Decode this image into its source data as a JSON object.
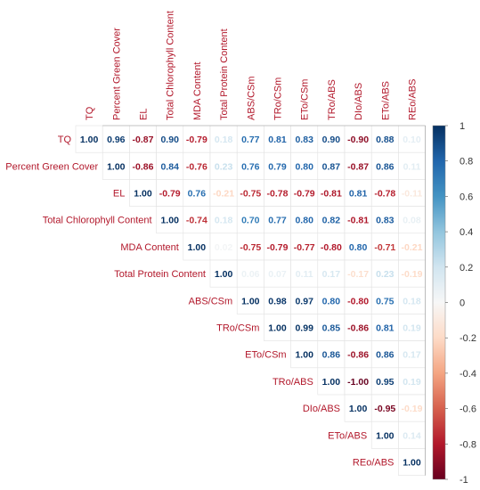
{
  "chart_data": {
    "type": "heatmap",
    "variables": [
      "TQ",
      "Percent Green Cover",
      "EL",
      "Total Chlorophyll Content",
      "MDA Content",
      "Total Protein Content",
      "ABS/CSm",
      "TRo/CSm",
      "ETo/CSm",
      "TRo/ABS",
      "DIo/ABS",
      "ETo/ABS",
      "REo/ABS"
    ],
    "matrix": [
      [
        1.0,
        0.96,
        -0.87,
        0.9,
        -0.79,
        0.18,
        0.77,
        0.81,
        0.83,
        0.9,
        -0.9,
        0.88,
        0.1
      ],
      [
        null,
        1.0,
        -0.86,
        0.84,
        -0.76,
        0.23,
        0.76,
        0.79,
        0.8,
        0.87,
        -0.87,
        0.86,
        0.11
      ],
      [
        null,
        null,
        1.0,
        -0.79,
        0.76,
        -0.21,
        -0.75,
        -0.78,
        -0.79,
        -0.81,
        0.81,
        -0.78,
        -0.11
      ],
      [
        null,
        null,
        null,
        1.0,
        -0.74,
        0.18,
        0.7,
        0.77,
        0.8,
        0.82,
        -0.81,
        0.83,
        0.08
      ],
      [
        null,
        null,
        null,
        null,
        1.0,
        0.02,
        -0.75,
        -0.79,
        -0.77,
        -0.8,
        0.8,
        -0.71,
        -0.21
      ],
      [
        null,
        null,
        null,
        null,
        null,
        1.0,
        0.06,
        0.07,
        0.11,
        0.17,
        -0.17,
        0.23,
        -0.19
      ],
      [
        null,
        null,
        null,
        null,
        null,
        null,
        1.0,
        0.98,
        0.97,
        0.8,
        -0.8,
        0.75,
        0.18
      ],
      [
        null,
        null,
        null,
        null,
        null,
        null,
        null,
        1.0,
        0.99,
        0.85,
        -0.86,
        0.81,
        0.19
      ],
      [
        null,
        null,
        null,
        null,
        null,
        null,
        null,
        null,
        1.0,
        0.86,
        -0.86,
        0.86,
        0.17
      ],
      [
        null,
        null,
        null,
        null,
        null,
        null,
        null,
        null,
        null,
        1.0,
        -1.0,
        0.95,
        0.19
      ],
      [
        null,
        null,
        null,
        null,
        null,
        null,
        null,
        null,
        null,
        null,
        1.0,
        -0.95,
        -0.19
      ],
      [
        null,
        null,
        null,
        null,
        null,
        null,
        null,
        null,
        null,
        null,
        null,
        1.0,
        0.14
      ],
      [
        null,
        null,
        null,
        null,
        null,
        null,
        null,
        null,
        null,
        null,
        null,
        null,
        1.0
      ]
    ],
    "colorbar": {
      "range": [
        -1,
        1
      ],
      "ticks": [
        "1",
        "0.8",
        "0.6",
        "0.4",
        "0.2",
        "0",
        "-0.2",
        "-0.4",
        "-0.6",
        "-0.8",
        "-1"
      ],
      "low_color": "#67001f",
      "mid_color": "#f7f7f7",
      "high_color": "#053061"
    },
    "label_color": "#b2182b"
  }
}
